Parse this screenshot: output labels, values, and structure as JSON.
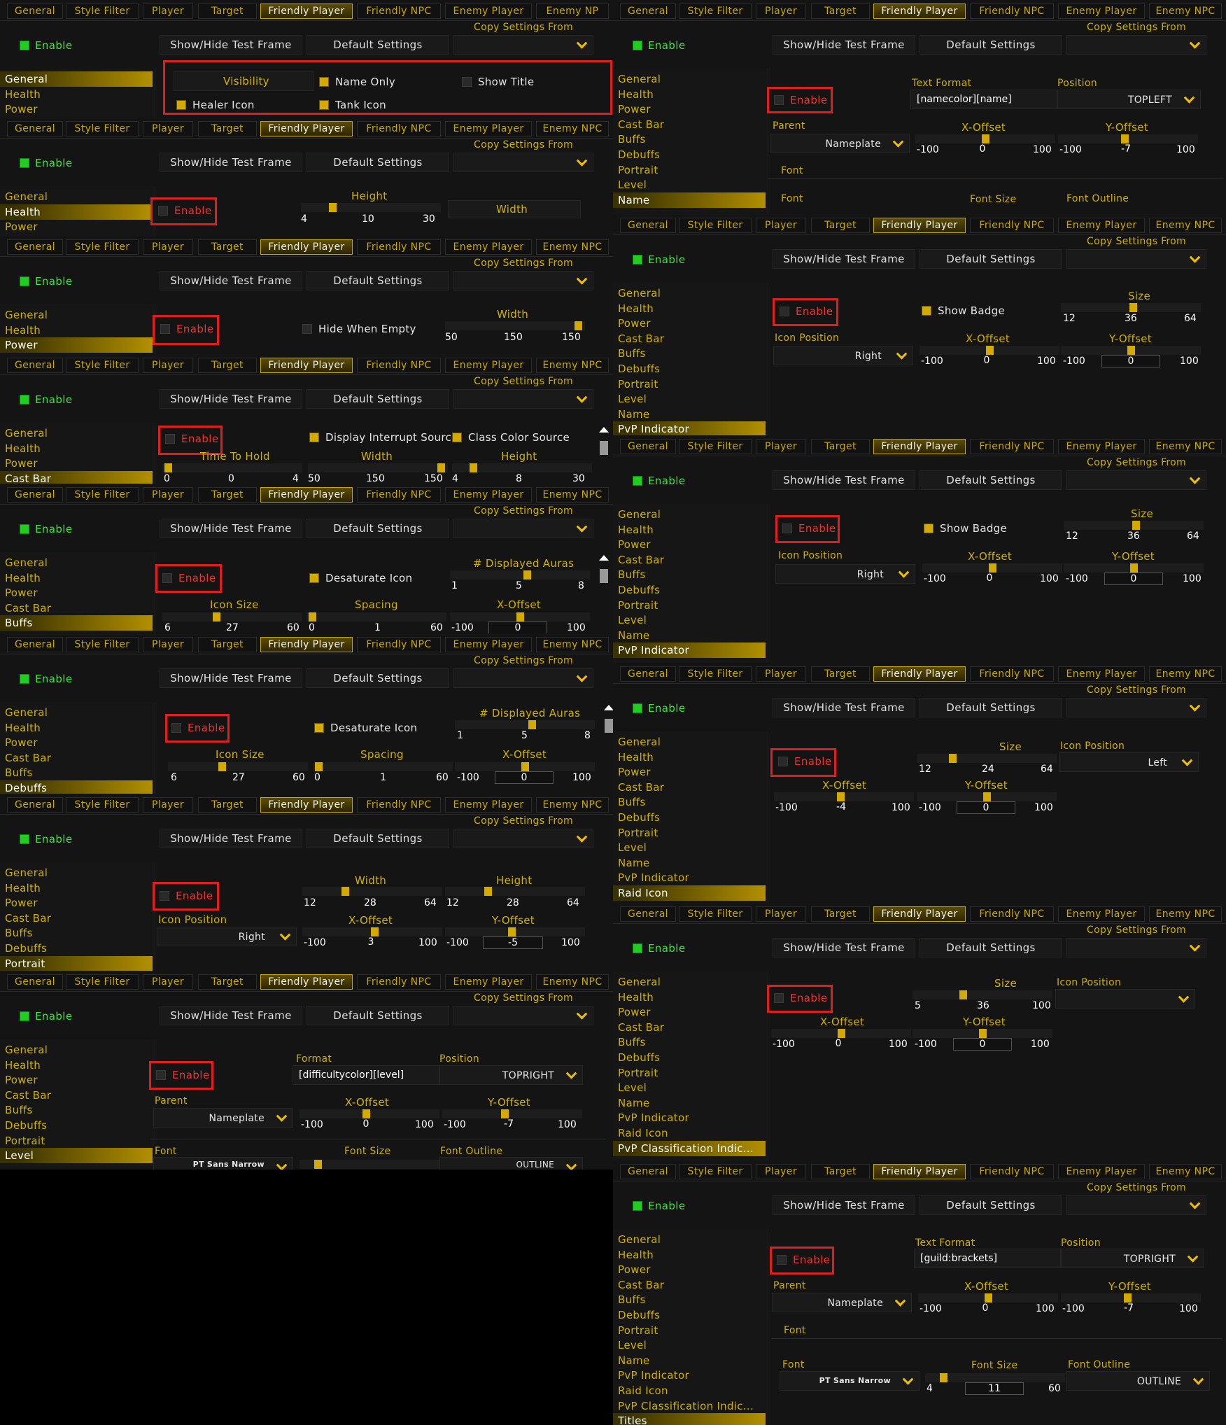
{
  "tabs": [
    "General",
    "Style Filter",
    "Player",
    "Target",
    "Friendly Player",
    "Friendly NPC",
    "Enemy Player",
    "Enemy NPC"
  ],
  "tabs_first_truncated": "Enemy NP",
  "copy_from": "Copy Settings From",
  "enable": "Enable",
  "show_hide": "Show/Hide Test Frame",
  "defaults": "Default Settings",
  "nav": {
    "general": "General",
    "health": "Health",
    "power": "Power",
    "castbar": "Cast Bar",
    "buffs": "Buffs",
    "debuffs": "Debuffs",
    "portrait": "Portrait",
    "level": "Level",
    "name": "Name",
    "pvp": "PvP Indicator",
    "raid": "Raid Icon",
    "pvpclass": "PvP Classification Indic...",
    "titles": "Titles"
  },
  "general_panel": {
    "visibility": "Visibility",
    "name_only": "Name Only",
    "show_title": "Show Title",
    "healer_icon": "Healer Icon",
    "tank_icon": "Tank Icon"
  },
  "health_panel": {
    "height": "Height",
    "height_min": "4",
    "height_val": "10",
    "height_max": "30",
    "width": "Width"
  },
  "power_panel": {
    "hide_when_empty": "Hide When Empty",
    "width": "Width",
    "width_min": "50",
    "width_val": "150",
    "width_max": "150"
  },
  "castbar_panel": {
    "interrupt": "Display Interrupt Source",
    "class_color": "Class Color Source",
    "time_hold": "Time To Hold",
    "th_min": "0",
    "th_val": "0",
    "th_max": "4",
    "width": "Width",
    "w_min": "50",
    "w_val": "150",
    "w_max": "150",
    "height": "Height",
    "h_min": "4",
    "h_val": "8",
    "h_max": "30"
  },
  "buffs_panel": {
    "desaturate": "Desaturate Icon",
    "displayed": "# Displayed Auras",
    "d_min": "1",
    "d_val": "5",
    "d_max": "8",
    "icon_size": "Icon Size",
    "is_min": "6",
    "is_val": "27",
    "is_max": "60",
    "spacing": "Spacing",
    "sp_min": "0",
    "sp_val": "1",
    "sp_max": "60",
    "xoff": "X-Offset",
    "x_min": "-100",
    "x_val": "0",
    "x_max": "100"
  },
  "debuffs_panel": {
    "desaturate": "Desaturate Icon",
    "displayed": "# Displayed Auras",
    "d_min": "1",
    "d_val": "5",
    "d_max": "8",
    "icon_size": "Icon Size",
    "is_min": "6",
    "is_val": "27",
    "is_max": "60",
    "spacing": "Spacing",
    "sp_min": "0",
    "sp_val": "1",
    "sp_max": "60",
    "xoff": "X-Offset",
    "x_min": "-100",
    "x_val": "0",
    "x_max": "100"
  },
  "portrait_panel": {
    "width": "Width",
    "w_min": "12",
    "w_val": "28",
    "w_max": "64",
    "height": "Height",
    "h_min": "12",
    "h_val": "28",
    "h_max": "64",
    "icon_position": "Icon Position",
    "pos_val": "Right",
    "xoff": "X-Offset",
    "x_min": "-100",
    "x_val": "3",
    "x_max": "100",
    "yoff": "Y-Offset",
    "y_min": "-100",
    "y_val": "-5",
    "y_max": "100"
  },
  "level_panel": {
    "format": "Format",
    "format_val": "[difficultycolor][level]",
    "position": "Position",
    "pos_val": "TOPRIGHT",
    "parent": "Parent",
    "parent_val": "Nameplate",
    "xoff": "X-Offset",
    "x_min": "-100",
    "x_val": "0",
    "x_max": "100",
    "yoff": "Y-Offset",
    "y_min": "-100",
    "y_val": "-7",
    "y_max": "100",
    "font": "Font",
    "font_val": "PT Sans Narrow",
    "font_size": "Font Size",
    "font_outline": "Font Outline",
    "outline_val": "OUTLINE"
  },
  "name_panel": {
    "text_format": "Text Format",
    "format_val": "[namecolor][name]",
    "position": "Position",
    "pos_val": "TOPLEFT",
    "parent": "Parent",
    "parent_val": "Nameplate",
    "xoff": "X-Offset",
    "x_min": "-100",
    "x_val": "0",
    "x_max": "100",
    "yoff": "Y-Offset",
    "y_min": "-100",
    "y_val": "-7",
    "y_max": "100",
    "font_header": "Font",
    "font": "Font",
    "font_size": "Font Size",
    "font_outline": "Font Outline"
  },
  "pvp_panel": {
    "show_badge": "Show Badge",
    "size": "Size",
    "s_min": "12",
    "s_val": "36",
    "s_max": "64",
    "icon_position": "Icon Position",
    "pos_val": "Right",
    "xoff": "X-Offset",
    "x_min": "-100",
    "x_val": "0",
    "x_max": "100",
    "yoff": "Y-Offset",
    "y_min": "-100",
    "y_val": "0",
    "y_max": "100"
  },
  "raid_panel": {
    "size": "Size",
    "s_min": "12",
    "s_val": "24",
    "s_max": "64",
    "icon_position": "Icon Position",
    "pos_val": "Left",
    "xoff": "X-Offset",
    "x_min": "-100",
    "x_val": "-4",
    "x_max": "100",
    "yoff": "Y-Offset",
    "y_min": "-100",
    "y_val": "0",
    "y_max": "100"
  },
  "pvpclass_panel": {
    "size": "Size",
    "s_min": "5",
    "s_val": "36",
    "s_max": "100",
    "icon_position": "Icon Position",
    "xoff": "X-Offset",
    "x_min": "-100",
    "x_val": "0",
    "x_max": "100",
    "yoff": "Y-Offset",
    "y_min": "-100",
    "y_val": "0",
    "y_max": "100"
  },
  "titles_panel": {
    "text_format": "Text Format",
    "format_val": "[guild:brackets]",
    "position": "Position",
    "pos_val": "TOPRIGHT",
    "parent": "Parent",
    "parent_val": "Nameplate",
    "xoff": "X-Offset",
    "x_min": "-100",
    "x_val": "0",
    "x_max": "100",
    "yoff": "Y-Offset",
    "y_min": "-100",
    "y_val": "-7",
    "y_max": "100",
    "font_header": "Font",
    "font": "Font",
    "font_val": "PT Sans Narrow",
    "font_size": "Font Size",
    "fs_min": "4",
    "fs_val": "11",
    "fs_max": "60",
    "font_outline": "Font Outline",
    "outline_val": "OUTLINE"
  },
  "colors": {
    "accent": "#d4aa00",
    "highlight": "#e01e1e",
    "enable_green": "#22cc22",
    "bg": "#141414"
  }
}
